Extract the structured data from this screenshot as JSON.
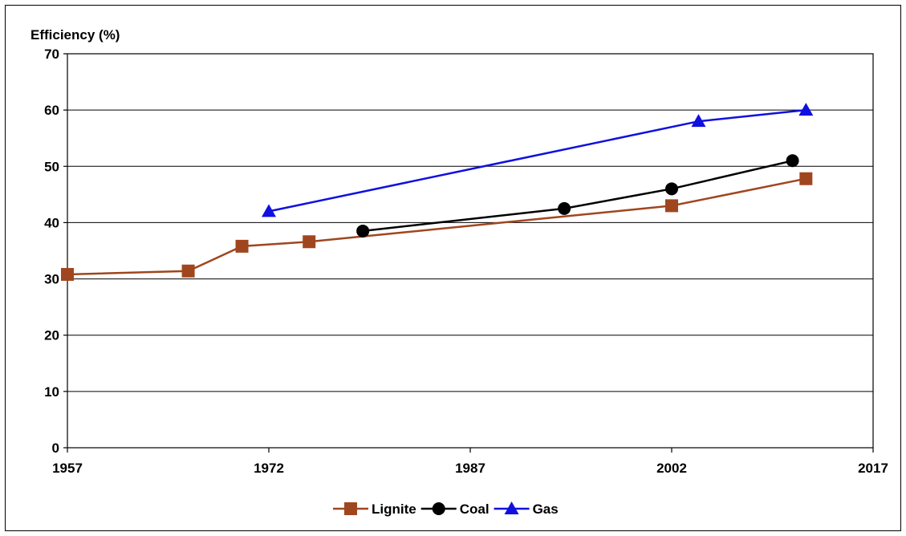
{
  "chart_data": {
    "type": "line",
    "ylabel": "Efficiency (%)",
    "xlabel": "",
    "xlim": [
      1957,
      2017
    ],
    "ylim": [
      0,
      70
    ],
    "x_ticks": [
      1957,
      1972,
      1987,
      2002,
      2017
    ],
    "y_ticks": [
      0,
      10,
      20,
      30,
      40,
      50,
      60,
      70
    ],
    "grid": "horizontal",
    "legend_position": "bottom",
    "series": [
      {
        "name": "Lignite",
        "color": "#a0461e",
        "marker": "square",
        "points": [
          [
            1957,
            30.8
          ],
          [
            1966,
            31.4
          ],
          [
            1970,
            35.8
          ],
          [
            1975,
            36.6
          ],
          [
            2002,
            43.0
          ],
          [
            2012,
            47.8
          ]
        ]
      },
      {
        "name": "Coal",
        "color": "#000000",
        "marker": "circle",
        "points": [
          [
            1979,
            38.5
          ],
          [
            1994,
            42.5
          ],
          [
            2002,
            46.0
          ],
          [
            2011,
            51.0
          ]
        ]
      },
      {
        "name": "Gas",
        "color": "#1010e0",
        "marker": "triangle",
        "points": [
          [
            1972,
            42.0
          ],
          [
            2004,
            58.0
          ],
          [
            2012,
            60.0
          ]
        ]
      }
    ]
  }
}
